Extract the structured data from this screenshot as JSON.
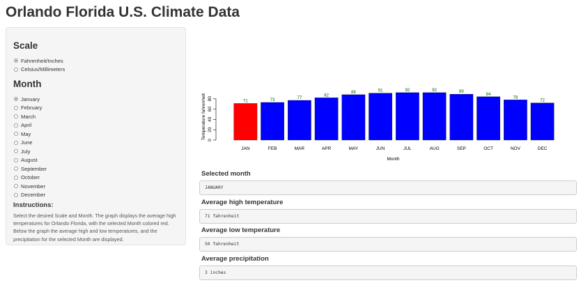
{
  "app": {
    "title": "Orlando Florida U.S. Climate Data"
  },
  "sidebar": {
    "scale_title": "Scale",
    "scale_options": [
      {
        "label": "Fahrenheit/Inches",
        "checked": true
      },
      {
        "label": "Celsius/Millimeters",
        "checked": false
      }
    ],
    "month_title": "Month",
    "month_options": [
      {
        "label": "January",
        "checked": true
      },
      {
        "label": "February",
        "checked": false
      },
      {
        "label": "March",
        "checked": false
      },
      {
        "label": "April",
        "checked": false
      },
      {
        "label": "May",
        "checked": false
      },
      {
        "label": "June",
        "checked": false
      },
      {
        "label": "July",
        "checked": false
      },
      {
        "label": "August",
        "checked": false
      },
      {
        "label": "September",
        "checked": false
      },
      {
        "label": "October",
        "checked": false
      },
      {
        "label": "November",
        "checked": false
      },
      {
        "label": "December",
        "checked": false
      }
    ],
    "instructions_title": "Instructions:",
    "instructions_text": "Select the desired Scale and Month. The graph displays the average high temperatures for Orlando Florida, with the selected Month colored red. Below the graph the average high and low temperatures, and the precipitation for the selected Month are displayed."
  },
  "outputs": {
    "selected_month_label": "Selected month",
    "selected_month_value": "JANUARY",
    "avg_high_label": "Average high temperature",
    "avg_high_value": "71 fahrenheit",
    "avg_low_label": "Average low temperature",
    "avg_low_value": "50 fahrenheit",
    "avg_precip_label": "Average precipitation",
    "avg_precip_value": "3 inches"
  },
  "chart_data": {
    "type": "bar",
    "categories": [
      "JAN",
      "FEB",
      "MAR",
      "APR",
      "MAY",
      "JUN",
      "JUL",
      "AUG",
      "SEP",
      "OCT",
      "NOV",
      "DEC"
    ],
    "values": [
      71,
      73,
      77,
      82,
      88,
      91,
      92,
      92,
      89,
      84,
      78,
      72
    ],
    "highlight_index": 0,
    "colors": {
      "bar": "#0000ff",
      "highlight": "#ff0000",
      "value_label": "#006400"
    },
    "xlabel": "Month",
    "ylabel": "Temperature fahrenheit",
    "yticks": [
      0,
      20,
      40,
      60,
      80
    ],
    "ylim": [
      0,
      92
    ],
    "grid": false
  }
}
